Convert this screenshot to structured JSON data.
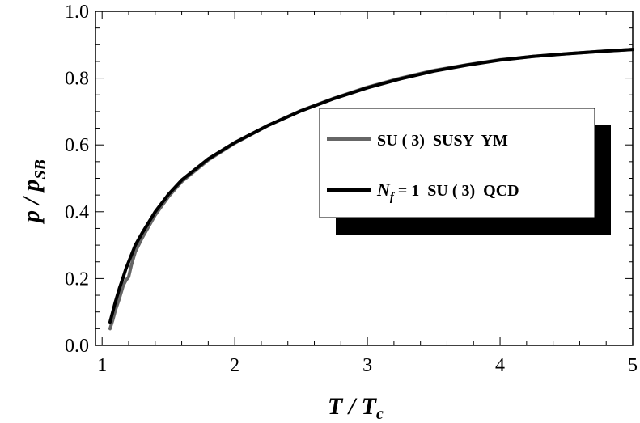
{
  "chart_data": {
    "type": "line",
    "x_range": [
      0.95,
      5
    ],
    "y_range": [
      0,
      1
    ],
    "x_ticks": [
      {
        "value": 1,
        "label": "1"
      },
      {
        "value": 2,
        "label": "2"
      },
      {
        "value": 3,
        "label": "3"
      },
      {
        "value": 4,
        "label": "4"
      },
      {
        "value": 5,
        "label": "5"
      }
    ],
    "y_ticks": [
      {
        "value": 0.0,
        "label": "0.0"
      },
      {
        "value": 0.2,
        "label": "0.2"
      },
      {
        "value": 0.4,
        "label": "0.4"
      },
      {
        "value": 0.6,
        "label": "0.6"
      },
      {
        "value": 0.8,
        "label": "0.8"
      },
      {
        "value": 1.0,
        "label": "1.0"
      }
    ],
    "xlabel": {
      "main": "T / T",
      "sub": "c"
    },
    "ylabel": {
      "main": "p / p",
      "sub": "SB"
    },
    "legend_placement": "center-right",
    "series": [
      {
        "name": "SU ( 3)  SUSY  YM",
        "color": "#666666",
        "x": [
          1.06,
          1.08,
          1.1,
          1.13,
          1.16,
          1.18,
          1.2,
          1.22,
          1.25,
          1.3,
          1.4,
          1.5,
          1.6,
          1.8,
          2.0,
          2.25,
          2.5,
          2.75,
          3.0,
          3.25,
          3.5,
          3.75,
          4.0,
          4.25,
          4.5,
          4.75,
          5.0
        ],
        "y": [
          0.05,
          0.075,
          0.105,
          0.14,
          0.18,
          0.195,
          0.205,
          0.24,
          0.28,
          0.32,
          0.39,
          0.445,
          0.49,
          0.555,
          0.605,
          0.658,
          0.703,
          0.74,
          0.773,
          0.8,
          0.823,
          0.84,
          0.855,
          0.865,
          0.873,
          0.88,
          0.886
        ]
      },
      {
        "name": "N f = 1  SU ( 3)  QCD",
        "name_parts": {
          "main": "N",
          "sub": "f",
          "rest": " = 1  SU ( 3)  QCD"
        },
        "color": "#000000",
        "x": [
          1.06,
          1.08,
          1.1,
          1.13,
          1.16,
          1.18,
          1.2,
          1.22,
          1.25,
          1.3,
          1.4,
          1.5,
          1.6,
          1.8,
          2.0,
          2.25,
          2.5,
          2.75,
          3.0,
          3.25,
          3.5,
          3.75,
          4.0,
          4.25,
          4.5,
          4.75,
          5.0
        ],
        "y": [
          0.07,
          0.1,
          0.13,
          0.17,
          0.205,
          0.23,
          0.25,
          0.27,
          0.3,
          0.335,
          0.4,
          0.452,
          0.495,
          0.558,
          0.607,
          0.658,
          0.702,
          0.739,
          0.771,
          0.798,
          0.821,
          0.839,
          0.854,
          0.865,
          0.873,
          0.88,
          0.886
        ]
      }
    ]
  }
}
